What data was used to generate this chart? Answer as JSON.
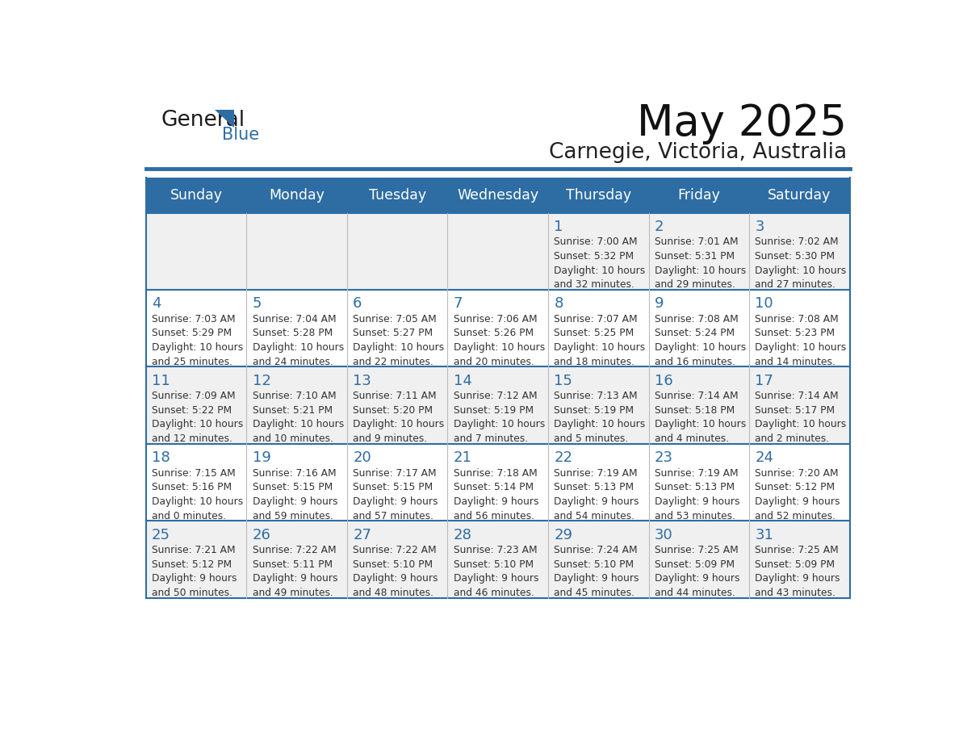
{
  "title": "May 2025",
  "subtitle": "Carnegie, Victoria, Australia",
  "header_bg": "#2E6DA4",
  "header_text_color": "#FFFFFF",
  "weekdays": [
    "Sunday",
    "Monday",
    "Tuesday",
    "Wednesday",
    "Thursday",
    "Friday",
    "Saturday"
  ],
  "row_bg_odd": "#F0F0F0",
  "row_bg_even": "#FFFFFF",
  "day_number_color": "#2E6DA4",
  "sun_info_color": "#333333",
  "border_color": "#2E6DA4",
  "logo_general_color": "#1a1a1a",
  "logo_blue_color": "#2E6DA4",
  "logo_triangle_color": "#2E6DA4",
  "calendar": [
    [
      {
        "day": "",
        "sunrise": "",
        "sunset": "",
        "daylight": ""
      },
      {
        "day": "",
        "sunrise": "",
        "sunset": "",
        "daylight": ""
      },
      {
        "day": "",
        "sunrise": "",
        "sunset": "",
        "daylight": ""
      },
      {
        "day": "",
        "sunrise": "",
        "sunset": "",
        "daylight": ""
      },
      {
        "day": "1",
        "sunrise": "7:00 AM",
        "sunset": "5:32 PM",
        "daylight": "10 hours\nand 32 minutes."
      },
      {
        "day": "2",
        "sunrise": "7:01 AM",
        "sunset": "5:31 PM",
        "daylight": "10 hours\nand 29 minutes."
      },
      {
        "day": "3",
        "sunrise": "7:02 AM",
        "sunset": "5:30 PM",
        "daylight": "10 hours\nand 27 minutes."
      }
    ],
    [
      {
        "day": "4",
        "sunrise": "7:03 AM",
        "sunset": "5:29 PM",
        "daylight": "10 hours\nand 25 minutes."
      },
      {
        "day": "5",
        "sunrise": "7:04 AM",
        "sunset": "5:28 PM",
        "daylight": "10 hours\nand 24 minutes."
      },
      {
        "day": "6",
        "sunrise": "7:05 AM",
        "sunset": "5:27 PM",
        "daylight": "10 hours\nand 22 minutes."
      },
      {
        "day": "7",
        "sunrise": "7:06 AM",
        "sunset": "5:26 PM",
        "daylight": "10 hours\nand 20 minutes."
      },
      {
        "day": "8",
        "sunrise": "7:07 AM",
        "sunset": "5:25 PM",
        "daylight": "10 hours\nand 18 minutes."
      },
      {
        "day": "9",
        "sunrise": "7:08 AM",
        "sunset": "5:24 PM",
        "daylight": "10 hours\nand 16 minutes."
      },
      {
        "day": "10",
        "sunrise": "7:08 AM",
        "sunset": "5:23 PM",
        "daylight": "10 hours\nand 14 minutes."
      }
    ],
    [
      {
        "day": "11",
        "sunrise": "7:09 AM",
        "sunset": "5:22 PM",
        "daylight": "10 hours\nand 12 minutes."
      },
      {
        "day": "12",
        "sunrise": "7:10 AM",
        "sunset": "5:21 PM",
        "daylight": "10 hours\nand 10 minutes."
      },
      {
        "day": "13",
        "sunrise": "7:11 AM",
        "sunset": "5:20 PM",
        "daylight": "10 hours\nand 9 minutes."
      },
      {
        "day": "14",
        "sunrise": "7:12 AM",
        "sunset": "5:19 PM",
        "daylight": "10 hours\nand 7 minutes."
      },
      {
        "day": "15",
        "sunrise": "7:13 AM",
        "sunset": "5:19 PM",
        "daylight": "10 hours\nand 5 minutes."
      },
      {
        "day": "16",
        "sunrise": "7:14 AM",
        "sunset": "5:18 PM",
        "daylight": "10 hours\nand 4 minutes."
      },
      {
        "day": "17",
        "sunrise": "7:14 AM",
        "sunset": "5:17 PM",
        "daylight": "10 hours\nand 2 minutes."
      }
    ],
    [
      {
        "day": "18",
        "sunrise": "7:15 AM",
        "sunset": "5:16 PM",
        "daylight": "10 hours\nand 0 minutes."
      },
      {
        "day": "19",
        "sunrise": "7:16 AM",
        "sunset": "5:15 PM",
        "daylight": "9 hours\nand 59 minutes."
      },
      {
        "day": "20",
        "sunrise": "7:17 AM",
        "sunset": "5:15 PM",
        "daylight": "9 hours\nand 57 minutes."
      },
      {
        "day": "21",
        "sunrise": "7:18 AM",
        "sunset": "5:14 PM",
        "daylight": "9 hours\nand 56 minutes."
      },
      {
        "day": "22",
        "sunrise": "7:19 AM",
        "sunset": "5:13 PM",
        "daylight": "9 hours\nand 54 minutes."
      },
      {
        "day": "23",
        "sunrise": "7:19 AM",
        "sunset": "5:13 PM",
        "daylight": "9 hours\nand 53 minutes."
      },
      {
        "day": "24",
        "sunrise": "7:20 AM",
        "sunset": "5:12 PM",
        "daylight": "9 hours\nand 52 minutes."
      }
    ],
    [
      {
        "day": "25",
        "sunrise": "7:21 AM",
        "sunset": "5:12 PM",
        "daylight": "9 hours\nand 50 minutes."
      },
      {
        "day": "26",
        "sunrise": "7:22 AM",
        "sunset": "5:11 PM",
        "daylight": "9 hours\nand 49 minutes."
      },
      {
        "day": "27",
        "sunrise": "7:22 AM",
        "sunset": "5:10 PM",
        "daylight": "9 hours\nand 48 minutes."
      },
      {
        "day": "28",
        "sunrise": "7:23 AM",
        "sunset": "5:10 PM",
        "daylight": "9 hours\nand 46 minutes."
      },
      {
        "day": "29",
        "sunrise": "7:24 AM",
        "sunset": "5:10 PM",
        "daylight": "9 hours\nand 45 minutes."
      },
      {
        "day": "30",
        "sunrise": "7:25 AM",
        "sunset": "5:09 PM",
        "daylight": "9 hours\nand 44 minutes."
      },
      {
        "day": "31",
        "sunrise": "7:25 AM",
        "sunset": "5:09 PM",
        "daylight": "9 hours\nand 43 minutes."
      }
    ]
  ]
}
